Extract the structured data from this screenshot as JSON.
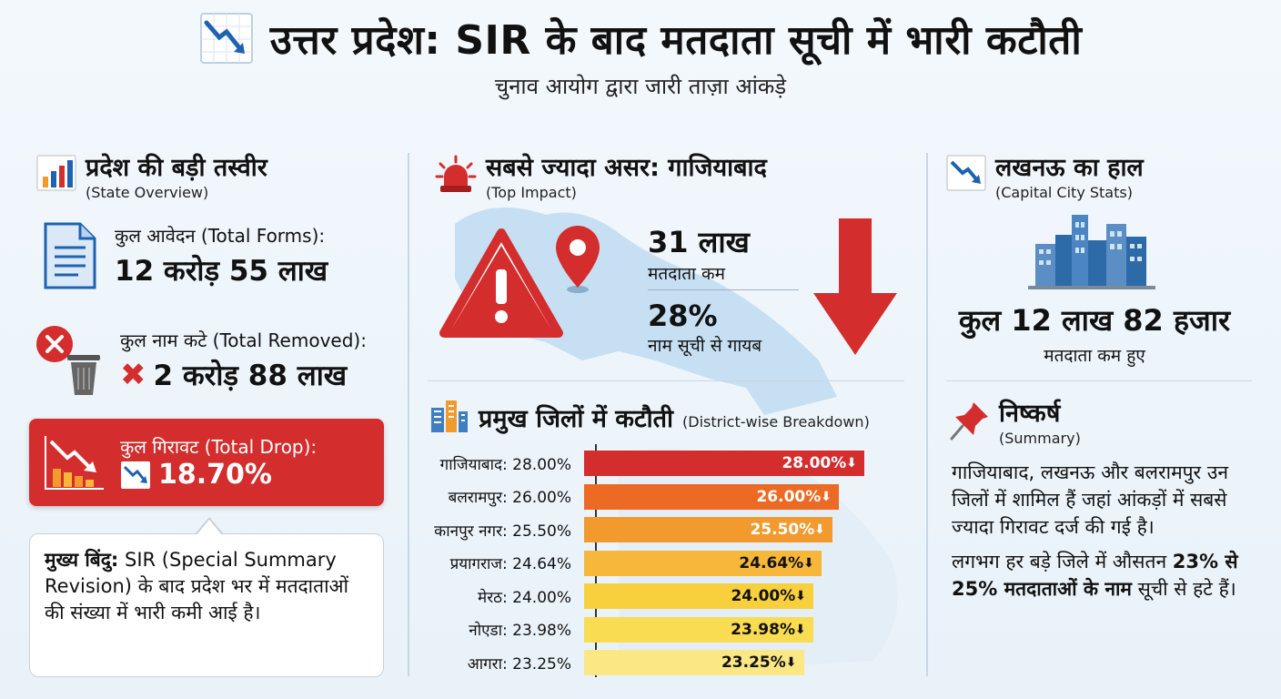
{
  "header": {
    "title": "उत्तर प्रदेश: SIR के बाद मतदाता सूची में भारी कटौती",
    "subtitle": "चुनाव आयोग द्वारा जारी ताज़ा आंकड़े"
  },
  "state": {
    "title": "प्रदेश की बड़ी तस्वीर",
    "sub": "(State Overview)",
    "forms_label": "कुल आवेदन (Total Forms):",
    "forms_value": "12 करोड़ 55 लाख",
    "removed_label": "कुल नाम कटे (Total Removed):",
    "removed_value": "2 करोड़ 88 लाख",
    "drop_label": "कुल गिरावट (Total Drop):",
    "drop_value": "18.70%",
    "point_head": "मुख्य बिंदु:",
    "point_text": " SIR (Special Summary Revision) के बाद प्रदेश भर में मतदाताओं की संख्या में भारी कमी आई है।"
  },
  "impact": {
    "title": "सबसे ज्यादा असर: गाजियाबाद",
    "sub": "(Top Impact)",
    "num1": "31 लाख",
    "cap1": "मतदाता कम",
    "num2": "28%",
    "cap2": "नाम सूची से गायब"
  },
  "districts": {
    "title": "प्रमुख जिलों में कटौती",
    "sub": "(District-wise Breakdown)",
    "rows": [
      {
        "label": "गाजियाबाद: 28.00%",
        "value": 28.0,
        "text": "28.00%",
        "color": "#d42d2d",
        "fg": "#ffffff"
      },
      {
        "label": "बलरामपुर: 26.00%",
        "value": 26.0,
        "text": "26.00%",
        "color": "#ec6a24",
        "fg": "#ffffff"
      },
      {
        "label": "कानपुर नगर: 25.50%",
        "value": 25.5,
        "text": "25.50%",
        "color": "#f29a2e",
        "fg": "#ffffff"
      },
      {
        "label": "प्रयागराज: 24.64%",
        "value": 24.64,
        "text": "24.64%",
        "color": "#f6b73a",
        "fg": "#111111"
      },
      {
        "label": "मेरठ: 24.00%",
        "value": 24.0,
        "text": "24.00%",
        "color": "#f8cf3c",
        "fg": "#111111"
      },
      {
        "label": "नोएडा: 23.98%",
        "value": 23.98,
        "text": "23.98%",
        "color": "#f9dc52",
        "fg": "#111111"
      },
      {
        "label": "आगरा: 23.25%",
        "value": 23.25,
        "text": "23.25%",
        "color": "#fbe884",
        "fg": "#111111"
      }
    ]
  },
  "lucknow": {
    "title": "लखनऊ का हाल",
    "sub": "(Capital City Stats)",
    "value": "कुल 12 लाख 82 हजार",
    "cap": "मतदाता कम हुए"
  },
  "summary": {
    "title": "निष्कर्ष",
    "sub": "(Summary)",
    "p1": "गाजियाबाद, लखनऊ और बलरामपुर उन जिलों में शामिल हैं जहां आंकड़ों में सबसे ज्यादा गिरावट दर्ज की गई है।",
    "p2a": "लगभग हर बड़े जिले में औसतन ",
    "p2b": "23% से 25% मतदाताओं के नाम",
    "p2c": " सूची से हटे हैं।"
  },
  "colors": {
    "accent_red": "#d42d2d",
    "divider": "#c9d7e4"
  }
}
